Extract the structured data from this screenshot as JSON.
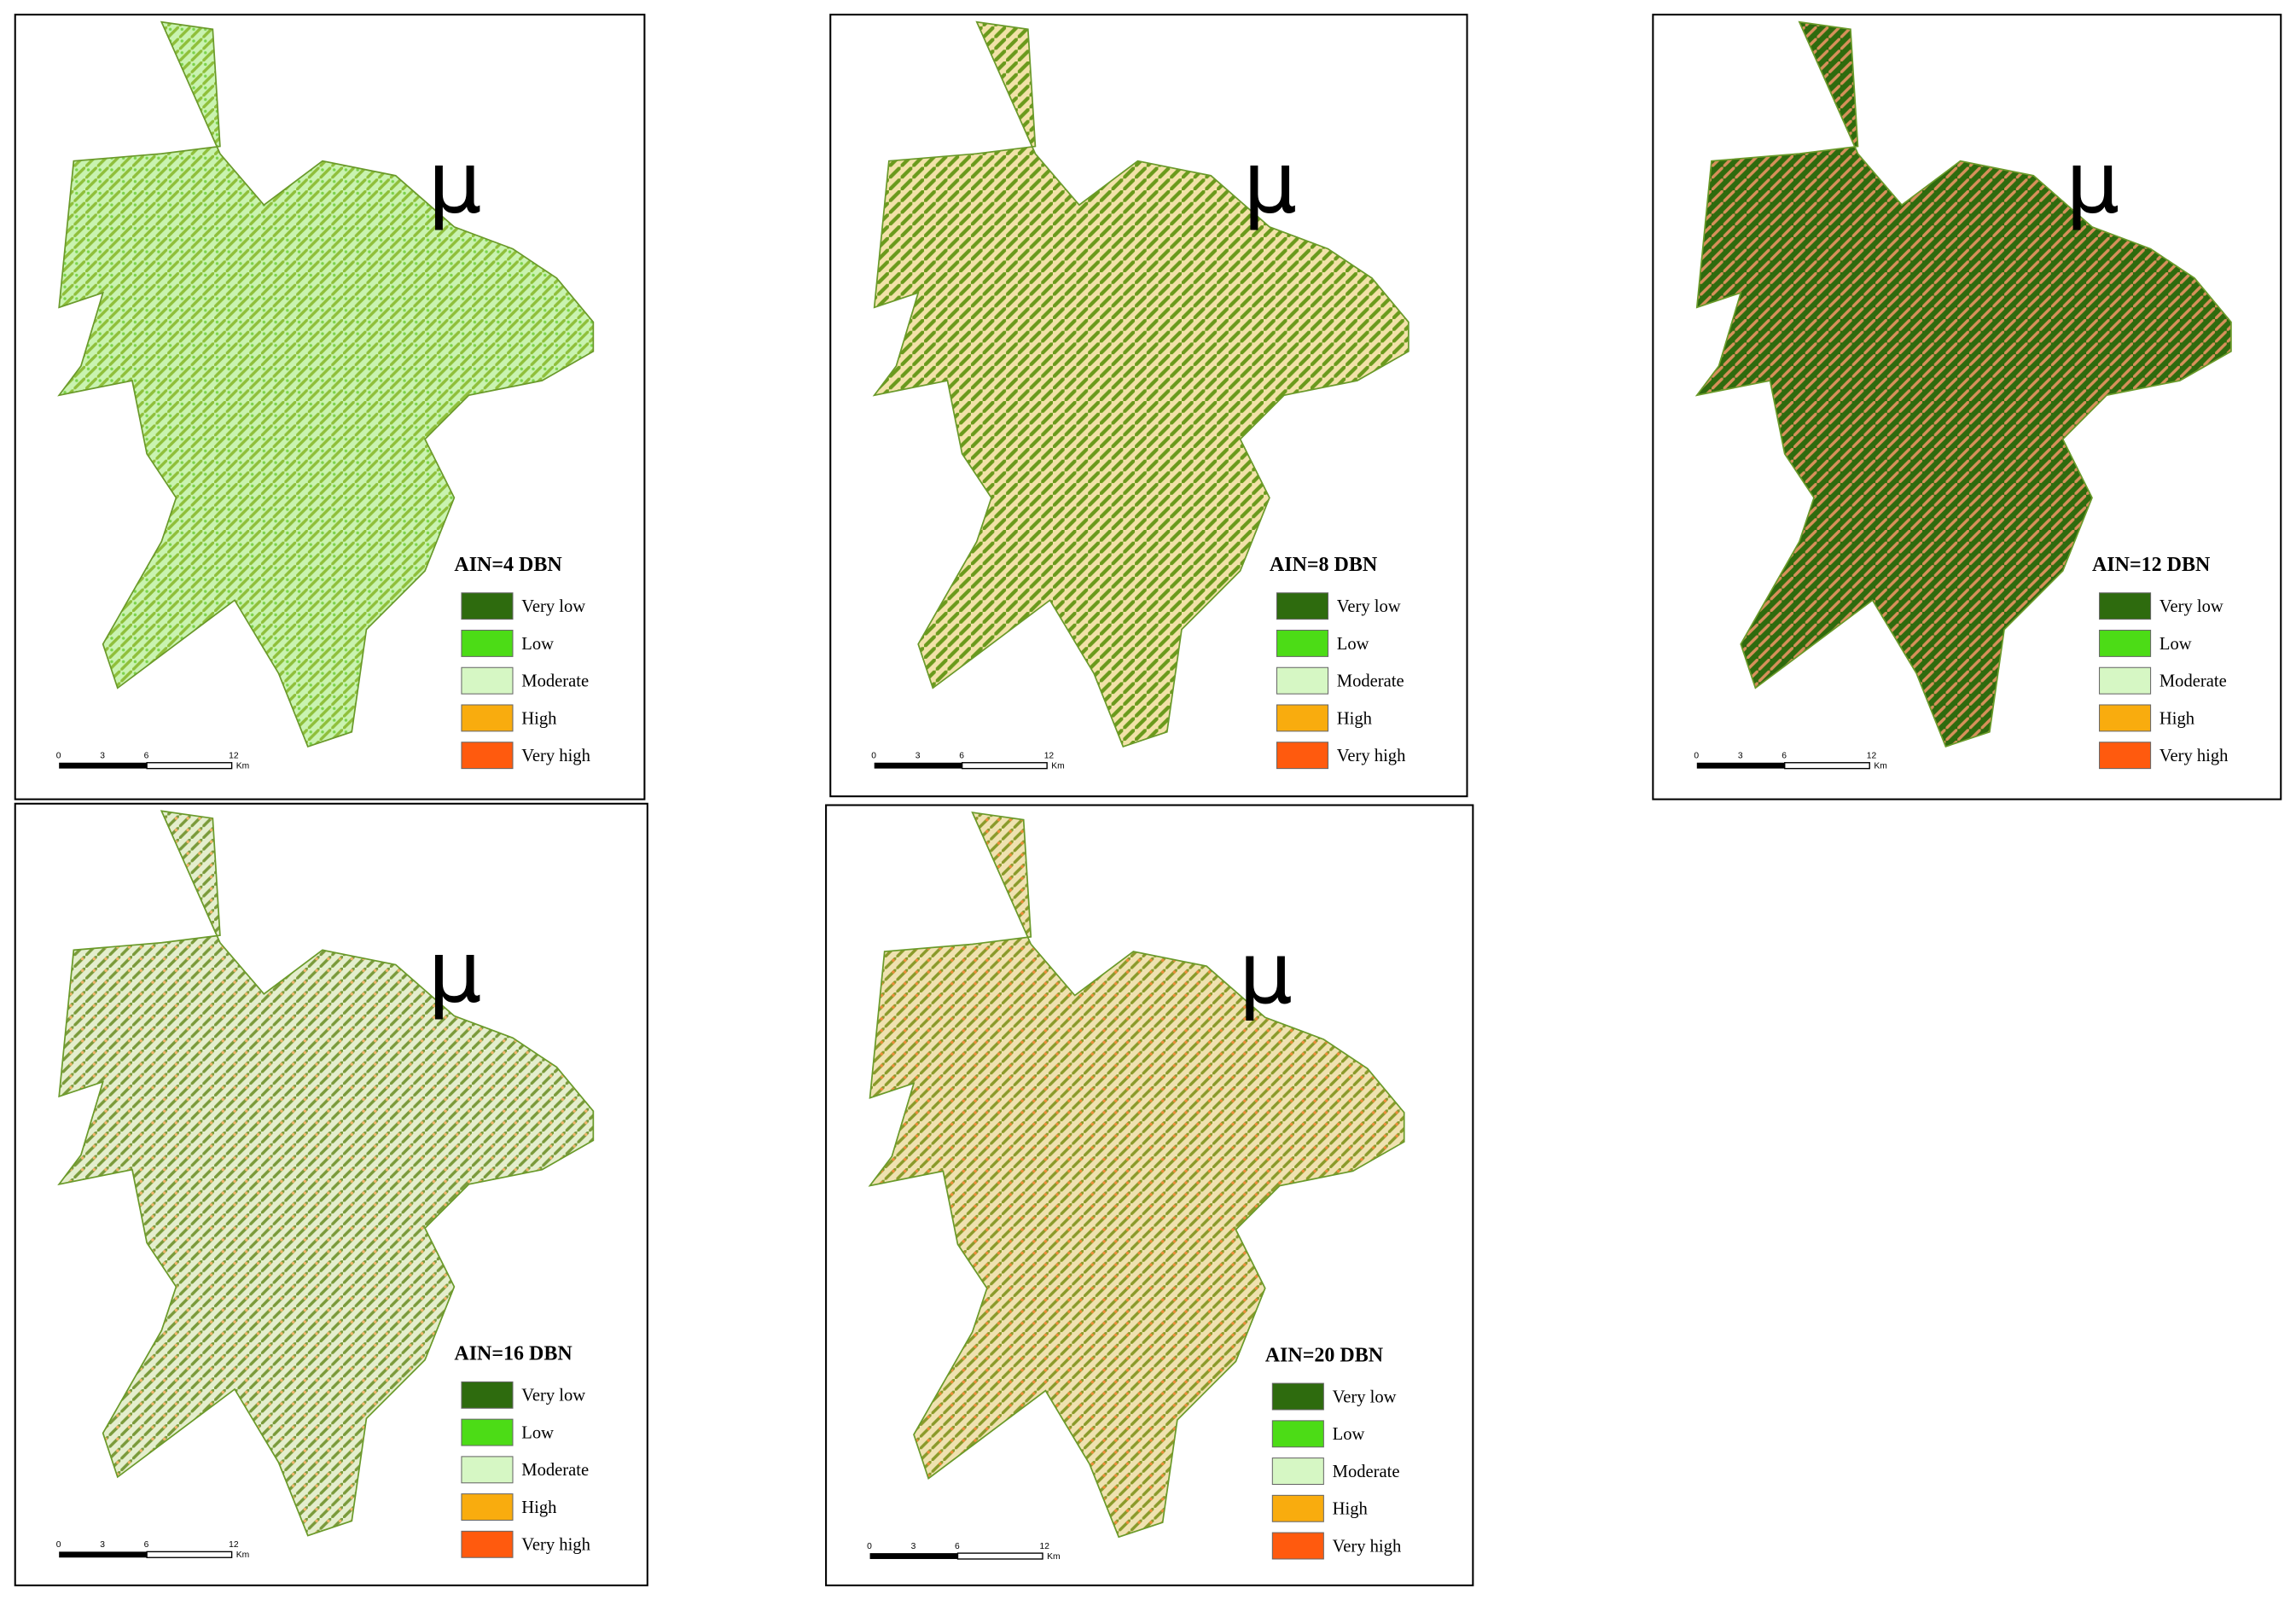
{
  "panels": [
    {
      "north": "μ",
      "title": "AIN=4 DBN",
      "legend": [
        {
          "label": "Very low",
          "color": "#2e6b0e"
        },
        {
          "label": "Low",
          "color": "#4cdc16"
        },
        {
          "label": "Moderate",
          "color": "#d6f7c4"
        },
        {
          "label": "High",
          "color": "#f9ac0e"
        },
        {
          "label": "Very high",
          "color": "#ff5a0e"
        }
      ],
      "scale": [
        "0",
        "3",
        "6",
        "12",
        "Km"
      ]
    },
    {
      "north": "μ",
      "title": "AIN=8 DBN",
      "legend": [
        {
          "label": "Very low",
          "color": "#2e6b0e"
        },
        {
          "label": "Low",
          "color": "#4cdc16"
        },
        {
          "label": "Moderate",
          "color": "#d6f7c4"
        },
        {
          "label": "High",
          "color": "#f9ac0e"
        },
        {
          "label": "Very high",
          "color": "#ff5a0e"
        }
      ],
      "scale": [
        "0",
        "3",
        "6",
        "12",
        "Km"
      ]
    },
    {
      "north": "μ",
      "title": "AIN=12 DBN",
      "legend": [
        {
          "label": "Very low",
          "color": "#2e6b0e"
        },
        {
          "label": "Low",
          "color": "#4cdc16"
        },
        {
          "label": "Moderate",
          "color": "#d6f7c4"
        },
        {
          "label": "High",
          "color": "#f9ac0e"
        },
        {
          "label": "Very high",
          "color": "#ff5a0e"
        }
      ],
      "scale": [
        "0",
        "3",
        "6",
        "12",
        "Km"
      ]
    },
    {
      "north": "μ",
      "title": "AIN=16 DBN",
      "legend": [
        {
          "label": "Very low",
          "color": "#2e6b0e"
        },
        {
          "label": "Low",
          "color": "#4cdc16"
        },
        {
          "label": "Moderate",
          "color": "#d6f7c4"
        },
        {
          "label": "High",
          "color": "#f9ac0e"
        },
        {
          "label": "Very high",
          "color": "#ff5a0e"
        }
      ],
      "scale": [
        "0",
        "3",
        "6",
        "12",
        "Km"
      ]
    },
    {
      "north": "μ",
      "title": "AIN=20 DBN",
      "legend": [
        {
          "label": "Very low",
          "color": "#2e6b0e"
        },
        {
          "label": "Low",
          "color": "#4cdc16"
        },
        {
          "label": "Moderate",
          "color": "#d6f7c4"
        },
        {
          "label": "High",
          "color": "#f9ac0e"
        },
        {
          "label": "Very high",
          "color": "#ff5a0e"
        }
      ],
      "scale": [
        "0",
        "3",
        "6",
        "12",
        "Km"
      ]
    }
  ]
}
